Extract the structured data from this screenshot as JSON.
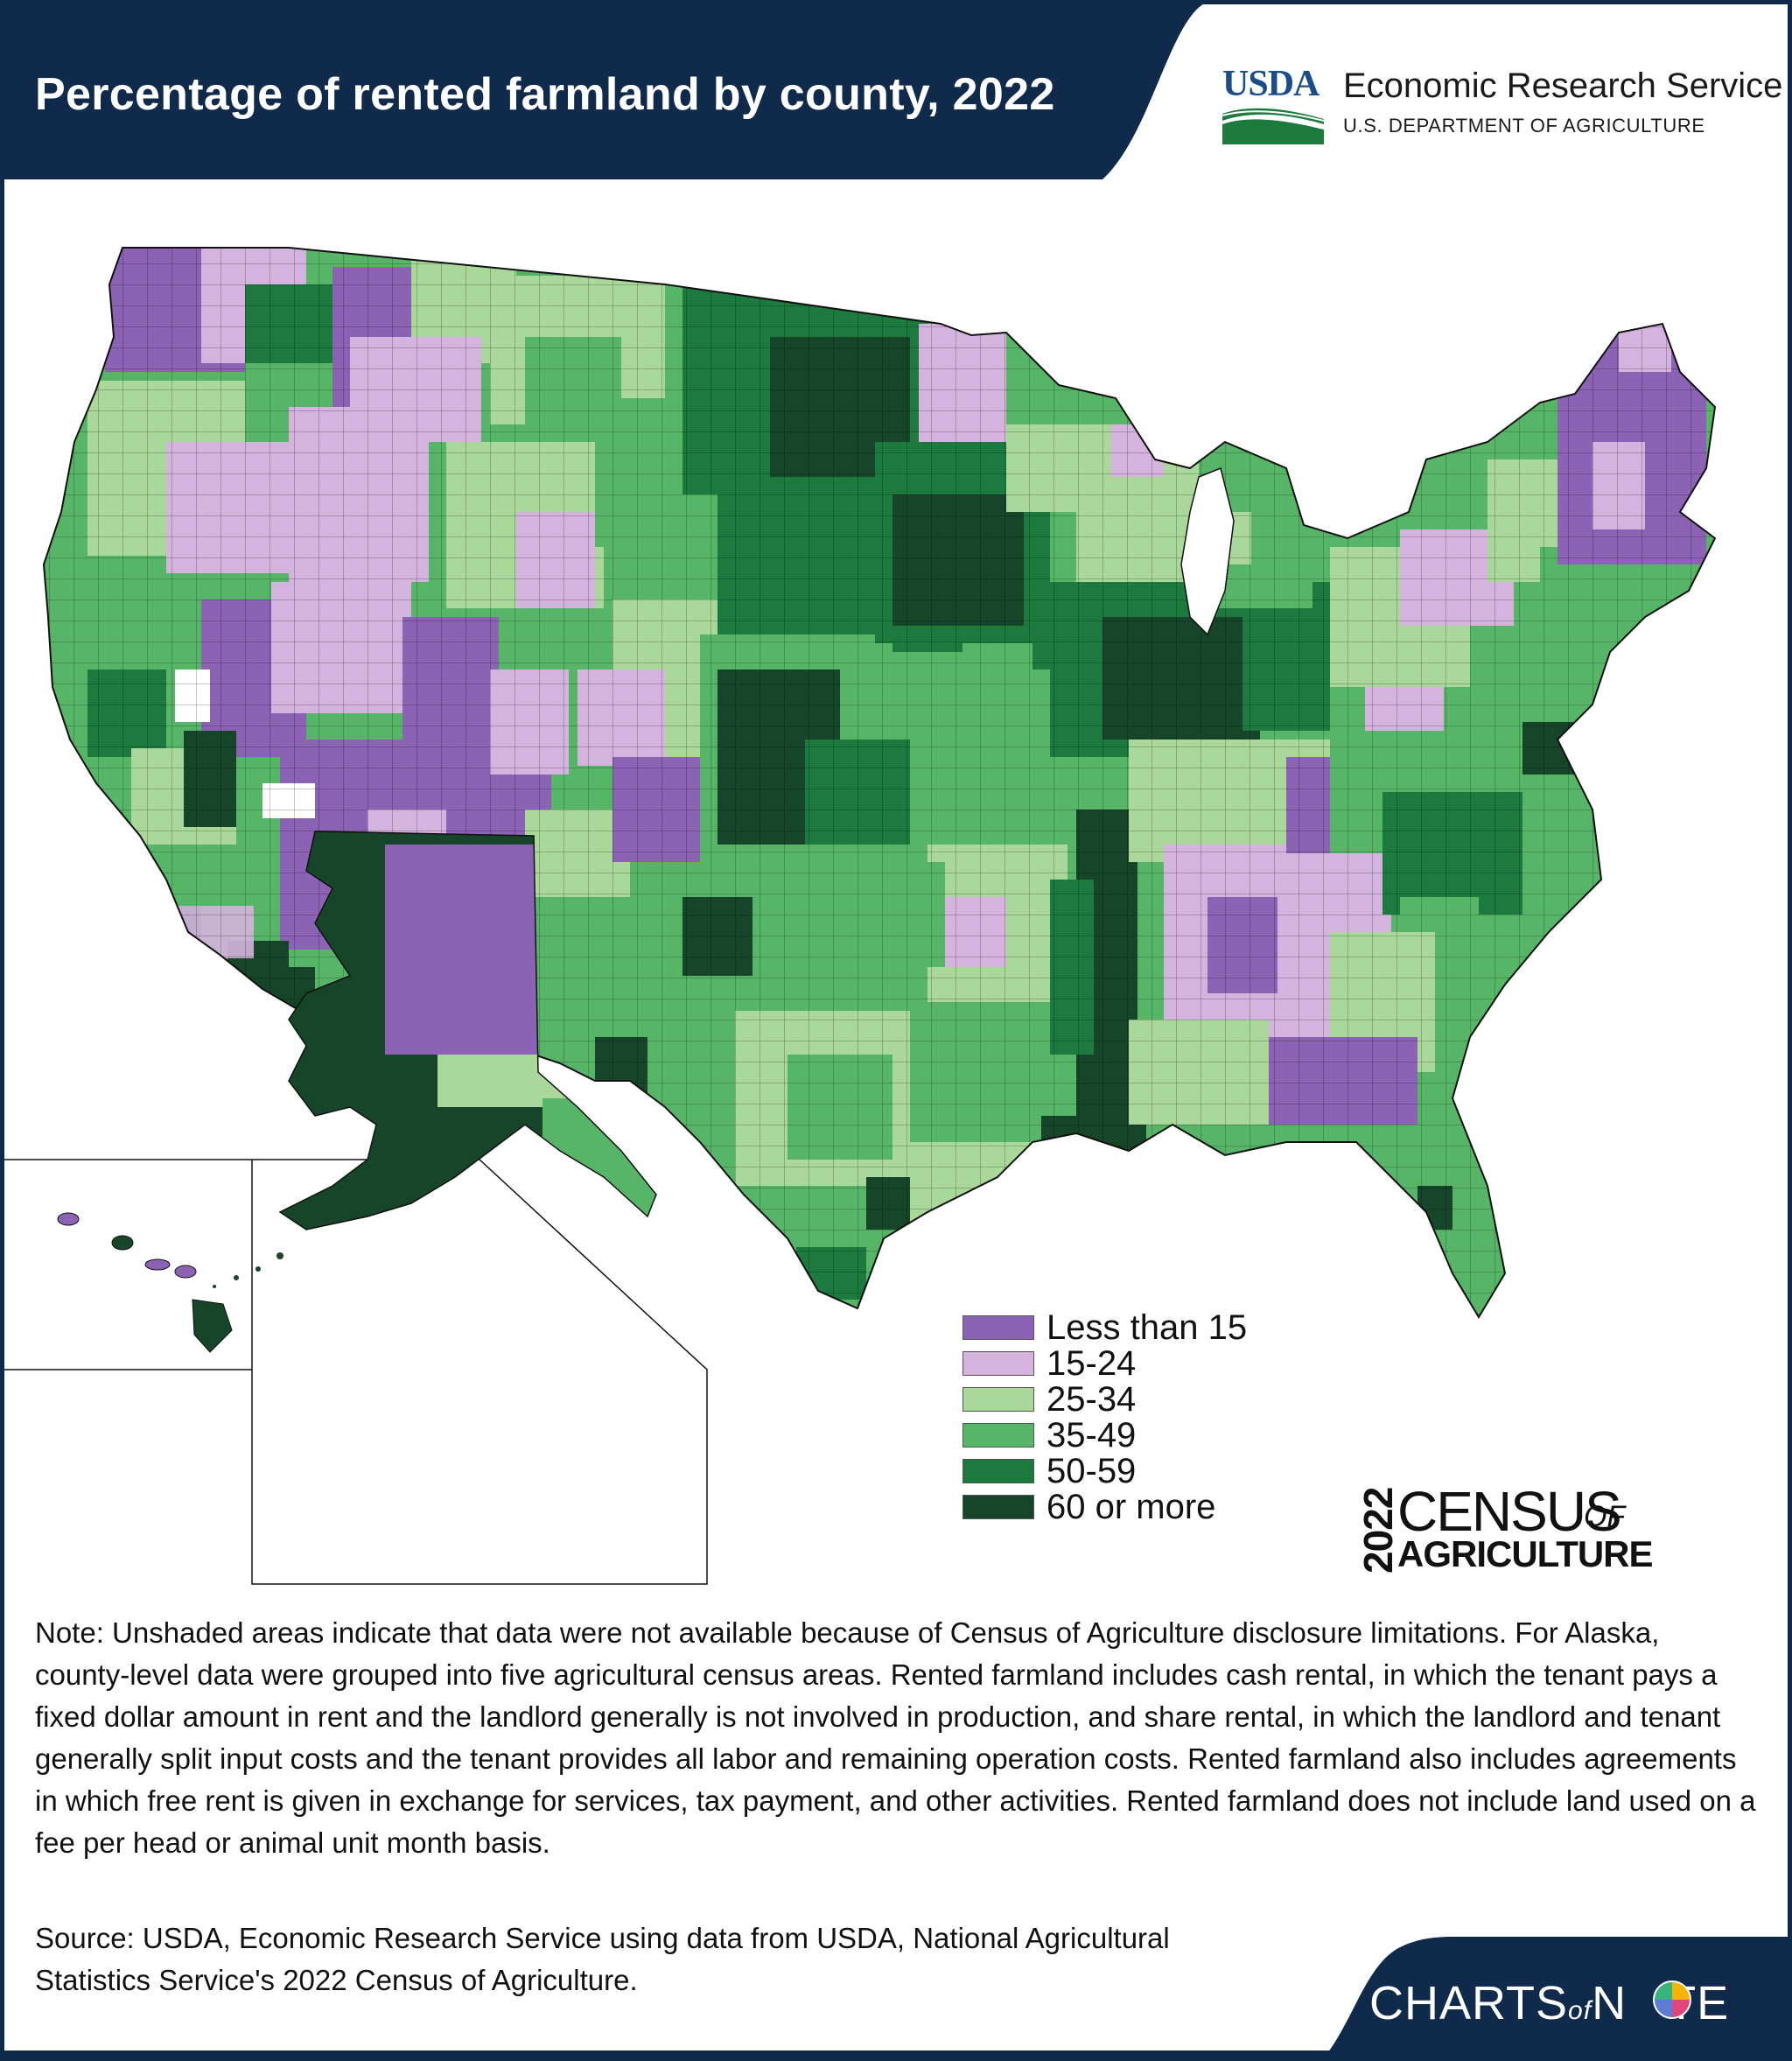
{
  "header": {
    "title": "Percentage of rented farmland by county, 2022",
    "logo_text": "USDA",
    "agency": "Economic Research Service",
    "department": "U.S. DEPARTMENT OF AGRICULTURE"
  },
  "legend": {
    "items": [
      {
        "label": "Less than 15",
        "color": "#8c62b4"
      },
      {
        "label": "15-24",
        "color": "#d4b4de"
      },
      {
        "label": "25-34",
        "color": "#a9d89a"
      },
      {
        "label": "35-49",
        "color": "#56b566"
      },
      {
        "label": "50-59",
        "color": "#1c7a3e"
      },
      {
        "label": "60 or more",
        "color": "#16452a"
      }
    ]
  },
  "census_logo": {
    "year": "2022",
    "word": "CENSUS",
    "of": "OF",
    "ag": "AGRICULTURE"
  },
  "note": "Note: Unshaded areas indicate that data were not available because of Census of Agriculture disclosure limitations. For Alaska, county-level data were grouped into five agricultural census areas. Rented farmland includes cash rental, in which the tenant pays a fixed dollar amount in rent and the landlord generally is not involved in production, and share rental, in which the landlord and tenant generally split input costs and the tenant provides all labor and remaining operation costs. Rented farmland also includes agreements in which free rent is given in exchange for services, tax payment, and other activities. Rented farmland does not include land used on a fee per head or animal unit month basis.",
  "source": "Source: USDA, Economic Research Service using data from USDA, National Agricultural Statistics Service's 2022 Census of Agriculture.",
  "footer": {
    "brand_left": "CHARTS",
    "brand_of": "of",
    "brand_right": "N",
    "brand_end": "TE"
  },
  "colors": {
    "navy": "#0f2a4a",
    "less_than_15": "#8c62b4",
    "r15_24": "#d4b4de",
    "r25_34": "#a9d89a",
    "r35_49": "#56b566",
    "r50_59": "#1c7a3e",
    "r60_plus": "#16452a"
  }
}
